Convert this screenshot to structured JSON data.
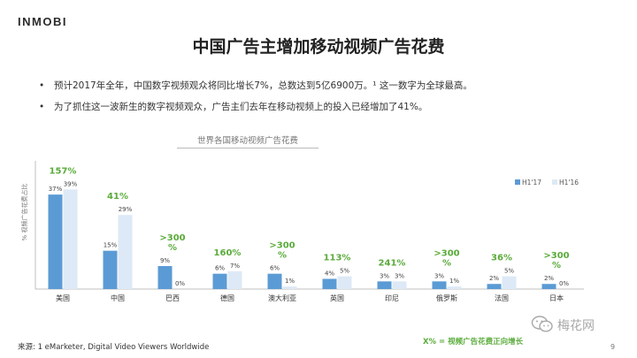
{
  "header": {
    "logo": "INMOBI",
    "title": "中国广告主增加移动视频广告花费"
  },
  "bullets": [
    "预计2017年全年，中国数字视频观众将同比增长7%，总数达到5亿6900万。¹ 这一数字为全球最高。",
    "为了抓住这一波新生的数字视频观众，广告主们去年在移动视频上的投入已经增加了41%。"
  ],
  "chart_data": {
    "type": "bar",
    "title": "世界各国移动视频广告花费",
    "ylabel": "% 视频广告花费占比",
    "ylim": [
      0,
      45
    ],
    "grid": false,
    "legend_position": "top-right",
    "categories": [
      "美国",
      "中国",
      "巴西",
      "德国",
      "澳大利亚",
      "英国",
      "印尼",
      "俄罗斯",
      "法国",
      "日本"
    ],
    "series": [
      {
        "name": "H1'17",
        "color": "#5b9bd5",
        "values": [
          37,
          15,
          9,
          6,
          6,
          4,
          3,
          3,
          2,
          2
        ]
      },
      {
        "name": "H1'16",
        "color": "#dde9f6",
        "values": [
          39,
          29,
          0,
          7,
          1,
          5,
          3,
          1,
          5,
          0
        ]
      }
    ],
    "growth_labels": [
      "157%",
      "41%",
      ">300\n%",
      "160%",
      ">300\n%",
      "113%",
      "241%",
      ">300\n%",
      "36%",
      ">300\n%"
    ],
    "growth_color": "#5aab3b"
  },
  "footer": {
    "source": "来源: 1 eMarketer, Digital Video Viewers Worldwide",
    "note": "X% = 视频广告花费正向增长",
    "page": "9",
    "watermark": "梅花网"
  }
}
